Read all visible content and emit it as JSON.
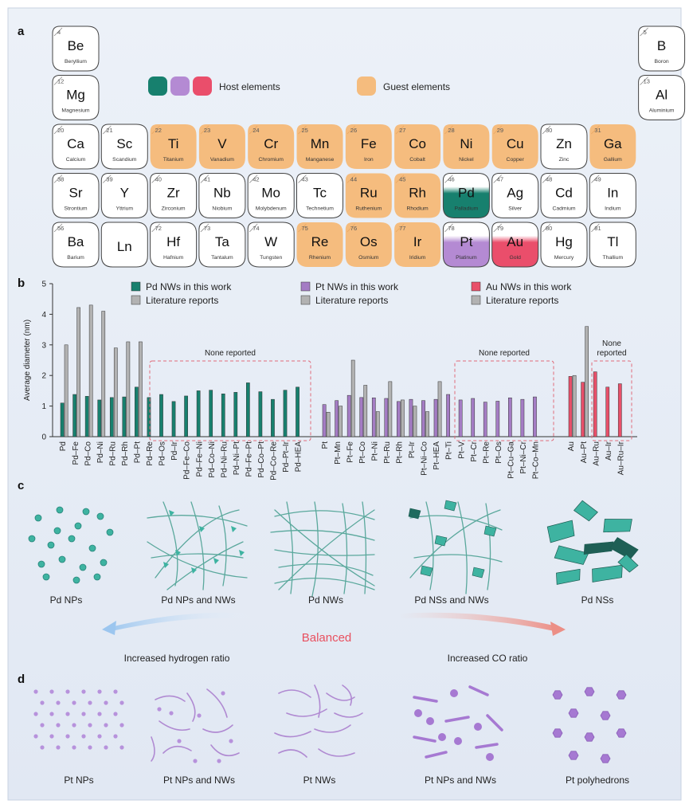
{
  "panels": {
    "a": "a",
    "b": "b",
    "c": "c",
    "d": "d"
  },
  "colors": {
    "pd": "#17806e",
    "pt": "#a47cc4",
    "au": "#e8506a",
    "lit": "#b2b2b2",
    "guest": "#f5bc7e",
    "pd_struct": "#3eb3a1",
    "pt_struct": "#a679d2"
  },
  "legend_a": {
    "host": "Host elements",
    "guest": "Guest elements"
  },
  "elements": [
    {
      "num": "4",
      "sym": "Be",
      "name": "Beryllium",
      "row": 0,
      "col": 0,
      "role": "none"
    },
    {
      "num": "5",
      "sym": "B",
      "name": "Boron",
      "row": 0,
      "col": 12,
      "role": "none"
    },
    {
      "num": "12",
      "sym": "Mg",
      "name": "Magnesium",
      "row": 1,
      "col": 0,
      "role": "none"
    },
    {
      "num": "13",
      "sym": "Al",
      "name": "Aluminium",
      "row": 1,
      "col": 12,
      "role": "none"
    },
    {
      "num": "20",
      "sym": "Ca",
      "name": "Calcium",
      "row": 2,
      "col": 0,
      "role": "none"
    },
    {
      "num": "21",
      "sym": "Sc",
      "name": "Scandium",
      "row": 2,
      "col": 1,
      "role": "none"
    },
    {
      "num": "22",
      "sym": "Ti",
      "name": "Titanium",
      "row": 2,
      "col": 2,
      "role": "guest"
    },
    {
      "num": "23",
      "sym": "V",
      "name": "Vanadium",
      "row": 2,
      "col": 3,
      "role": "guest"
    },
    {
      "num": "24",
      "sym": "Cr",
      "name": "Chromium",
      "row": 2,
      "col": 4,
      "role": "guest"
    },
    {
      "num": "25",
      "sym": "Mn",
      "name": "Manganese",
      "row": 2,
      "col": 5,
      "role": "guest"
    },
    {
      "num": "26",
      "sym": "Fe",
      "name": "Iron",
      "row": 2,
      "col": 6,
      "role": "guest"
    },
    {
      "num": "27",
      "sym": "Co",
      "name": "Cobalt",
      "row": 2,
      "col": 7,
      "role": "guest"
    },
    {
      "num": "28",
      "sym": "Ni",
      "name": "Nickel",
      "row": 2,
      "col": 8,
      "role": "guest"
    },
    {
      "num": "29",
      "sym": "Cu",
      "name": "Copper",
      "row": 2,
      "col": 9,
      "role": "guest"
    },
    {
      "num": "30",
      "sym": "Zn",
      "name": "Zinc",
      "row": 2,
      "col": 10,
      "role": "none"
    },
    {
      "num": "31",
      "sym": "Ga",
      "name": "Gallium",
      "row": 2,
      "col": 11,
      "role": "guest"
    },
    {
      "num": "38",
      "sym": "Sr",
      "name": "Strontium",
      "row": 3,
      "col": 0,
      "role": "none"
    },
    {
      "num": "39",
      "sym": "Y",
      "name": "Yttrium",
      "row": 3,
      "col": 1,
      "role": "none"
    },
    {
      "num": "40",
      "sym": "Zr",
      "name": "Zirconium",
      "row": 3,
      "col": 2,
      "role": "none"
    },
    {
      "num": "41",
      "sym": "Nb",
      "name": "Niobium",
      "row": 3,
      "col": 3,
      "role": "none"
    },
    {
      "num": "42",
      "sym": "Mo",
      "name": "Molybdenum",
      "row": 3,
      "col": 4,
      "role": "none"
    },
    {
      "num": "43",
      "sym": "Tc",
      "name": "Technetium",
      "row": 3,
      "col": 5,
      "role": "none"
    },
    {
      "num": "44",
      "sym": "Ru",
      "name": "Ruthenium",
      "row": 3,
      "col": 6,
      "role": "guest"
    },
    {
      "num": "45",
      "sym": "Rh",
      "name": "Rhodium",
      "row": 3,
      "col": 7,
      "role": "guest"
    },
    {
      "num": "46",
      "sym": "Pd",
      "name": "Palladium",
      "row": 3,
      "col": 8,
      "role": "host-pd"
    },
    {
      "num": "47",
      "sym": "Ag",
      "name": "Silver",
      "row": 3,
      "col": 9,
      "role": "none"
    },
    {
      "num": "48",
      "sym": "Cd",
      "name": "Cadmium",
      "row": 3,
      "col": 10,
      "role": "none"
    },
    {
      "num": "49",
      "sym": "In",
      "name": "Indium",
      "row": 3,
      "col": 11,
      "role": "none"
    },
    {
      "num": "56",
      "sym": "Ba",
      "name": "Barium",
      "row": 4,
      "col": 0,
      "role": "none"
    },
    {
      "num": "",
      "sym": "Ln",
      "name": "",
      "row": 4,
      "col": 1,
      "role": "none"
    },
    {
      "num": "72",
      "sym": "Hf",
      "name": "Hafnium",
      "row": 4,
      "col": 2,
      "role": "none"
    },
    {
      "num": "73",
      "sym": "Ta",
      "name": "Tantalum",
      "row": 4,
      "col": 3,
      "role": "none"
    },
    {
      "num": "74",
      "sym": "W",
      "name": "Tungsten",
      "row": 4,
      "col": 4,
      "role": "none"
    },
    {
      "num": "75",
      "sym": "Re",
      "name": "Rhenium",
      "row": 4,
      "col": 5,
      "role": "guest"
    },
    {
      "num": "76",
      "sym": "Os",
      "name": "Osmium",
      "row": 4,
      "col": 6,
      "role": "guest"
    },
    {
      "num": "77",
      "sym": "Ir",
      "name": "Iridium",
      "row": 4,
      "col": 7,
      "role": "guest"
    },
    {
      "num": "78",
      "sym": "Pt",
      "name": "Platinum",
      "row": 4,
      "col": 8,
      "role": "host-pt"
    },
    {
      "num": "79",
      "sym": "Au",
      "name": "Gold",
      "row": 4,
      "col": 9,
      "role": "host-au"
    },
    {
      "num": "80",
      "sym": "Hg",
      "name": "Mercury",
      "row": 4,
      "col": 10,
      "role": "none"
    },
    {
      "num": "81",
      "sym": "Tl",
      "name": "Thallium",
      "row": 4,
      "col": 11,
      "role": "none"
    }
  ],
  "chart_data": {
    "type": "bar",
    "ylabel": "Average diameter (nm)",
    "ylim": [
      0,
      5
    ],
    "yticks": [
      0,
      1,
      2,
      3,
      4,
      5
    ],
    "legend": [
      {
        "label": "Pd NWs in this work",
        "color": "#17806e"
      },
      {
        "label": "Literature reports",
        "color": "#b2b2b2"
      },
      {
        "label": "Pt NWs in this work",
        "color": "#a47cc4"
      },
      {
        "label": "Literature reports",
        "color": "#b2b2b2"
      },
      {
        "label": "Au NWs in this work",
        "color": "#e8506a"
      },
      {
        "label": "Literature reports",
        "color": "#b2b2b2"
      }
    ],
    "groups": [
      {
        "host": "Pd",
        "categories": [
          "Pd",
          "Pd–Fe",
          "Pd–Co",
          "Pd–Ni",
          "Pd–Ru",
          "Pd–Rh",
          "Pd–Pt",
          "Pd–Re",
          "Pd–Os",
          "Pd–Ir",
          "Pd–Fe–Co",
          "Pd–Fe–Ni",
          "Pd–Co–Ni",
          "Pd–Ni–Ru",
          "Pd–Ni–Pt",
          "Pd–Fe–Pt",
          "Pd–Co–Pt",
          "Pd–Co–Re",
          "Pd–Pt–Ir",
          "Pd–HEA"
        ],
        "this_work": [
          1.1,
          1.38,
          1.32,
          1.2,
          1.28,
          1.3,
          1.62,
          1.28,
          1.38,
          1.15,
          1.33,
          1.5,
          1.52,
          1.4,
          1.45,
          1.76,
          1.47,
          1.22,
          1.52,
          1.62
        ],
        "literature": [
          3.0,
          4.22,
          4.3,
          4.1,
          2.9,
          3.1,
          3.1,
          null,
          null,
          null,
          null,
          null,
          null,
          null,
          null,
          null,
          null,
          null,
          null,
          null
        ]
      },
      {
        "host": "Pt",
        "categories": [
          "Pt",
          "Pt–Mn",
          "Pt–Fe",
          "Pt–Co",
          "Pt–Ni",
          "Pt–Ru",
          "Pt–Rh",
          "Pt–Ir",
          "Pt–Ni–Co",
          "Pt–HEA",
          "Pt–Ti",
          "Pt–V",
          "Pt–Cr",
          "Pt–Re",
          "Pt–Os",
          "Pt–Cu–Ga",
          "Pt–Ni–Cr",
          "Pt–Co–Mn"
        ],
        "this_work": [
          1.05,
          1.18,
          1.35,
          1.28,
          1.27,
          1.25,
          1.15,
          1.22,
          1.18,
          1.22,
          1.38,
          1.2,
          1.25,
          1.13,
          1.16,
          1.27,
          1.22,
          1.3
        ],
        "literature": [
          0.8,
          1.0,
          2.5,
          1.68,
          0.82,
          1.8,
          1.2,
          1.0,
          0.82,
          1.8,
          null,
          null,
          null,
          null,
          null,
          null,
          null,
          null
        ]
      },
      {
        "host": "Au",
        "categories": [
          "Au",
          "Au–Pt",
          "Au–Ru",
          "Au–Ir",
          "Au–Ru–Ir"
        ],
        "this_work": [
          1.97,
          1.78,
          2.12,
          1.62,
          1.73
        ],
        "literature": [
          2.0,
          3.6,
          null,
          null,
          null
        ]
      }
    ],
    "annotations": {
      "none_reported_pd": "None reported",
      "none_reported_pt": "None reported",
      "none_reported_au_1": "None",
      "none_reported_au_2": "reported"
    }
  },
  "panel_c": {
    "labels": [
      "Pd NPs",
      "Pd NPs and NWs",
      "Pd NWs",
      "Pd NSs and NWs",
      "Pd NSs"
    ],
    "balanced": "Balanced",
    "left_text": "Increased hydrogen ratio",
    "right_text": "Increased CO ratio"
  },
  "panel_d": {
    "labels": [
      "Pt NPs",
      "Pt NPs and NWs",
      "Pt NWs",
      "Pt NPs and NWs",
      "Pt polyhedrons"
    ]
  }
}
